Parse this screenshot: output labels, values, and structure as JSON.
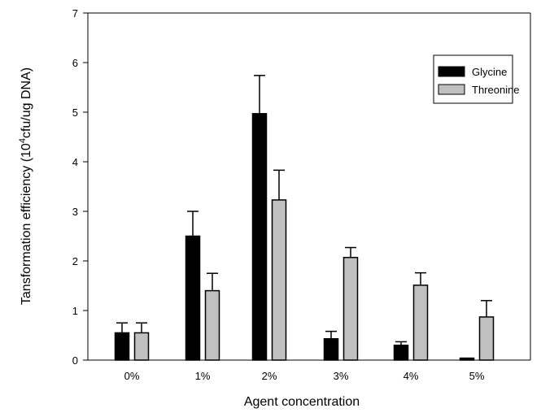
{
  "chart_data": {
    "type": "bar",
    "title": "",
    "xlabel": "Agent concentration",
    "ylabel_main": "Tansformation efficiency (10",
    "ylabel_sup": "4",
    "ylabel_rest": "cfu/ug DNA)",
    "categories": [
      "0%",
      "1%",
      "2%",
      "3%",
      "4%",
      "5%"
    ],
    "ylim": [
      0,
      7
    ],
    "yticks": [
      "0",
      "1",
      "2",
      "3",
      "4",
      "5",
      "6",
      "7"
    ],
    "grid": false,
    "legend_position": "top-right",
    "series": [
      {
        "name": "Glycine",
        "color": "#000000",
        "values": [
          0.55,
          2.5,
          4.97,
          0.43,
          0.3,
          0.04
        ],
        "errors": [
          0.2,
          0.5,
          0.77,
          0.15,
          0.07,
          0.0
        ]
      },
      {
        "name": "Threonine",
        "color": "#c0c0c0",
        "values": [
          0.55,
          1.4,
          3.23,
          2.07,
          1.51,
          0.87
        ],
        "errors": [
          0.2,
          0.35,
          0.6,
          0.2,
          0.25,
          0.33
        ]
      }
    ]
  }
}
